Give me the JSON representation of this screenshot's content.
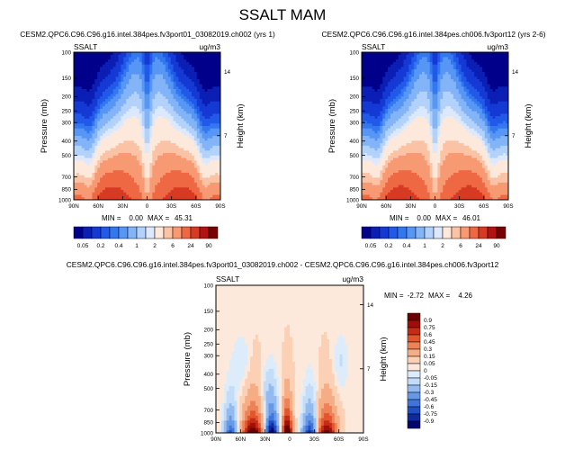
{
  "figure": {
    "title": "SSALT MAM"
  },
  "chart_data": [
    {
      "type": "heatmap",
      "panel": "top-left",
      "title": "CESM2.QPC6.C96.C96.g16.intel.384pes.fv3port01_03082019.ch002 (yrs 1)",
      "variable": "SSALT",
      "units": "ug/m3",
      "ylabel": "Pressure (mb)",
      "y2label": "Height (km)",
      "x_ticks": [
        "90N",
        "60N",
        "30N",
        "0",
        "30S",
        "60S",
        "90S"
      ],
      "y_ticks": [
        "100",
        "150",
        "200",
        "250",
        "300",
        "400",
        "500",
        "700",
        "850",
        "1000"
      ],
      "y2_ticks": [
        "14",
        "7"
      ],
      "min_label": "MIN =",
      "min_value": "0.00",
      "max_label": "MAX =",
      "max_value": "45.31",
      "x": [
        90,
        60,
        30,
        0,
        -30,
        -60,
        -90
      ],
      "ylim": [
        100,
        1000
      ],
      "y_scale": "log",
      "colorbar": {
        "orientation": "horizontal",
        "levels": [
          0.05,
          0.1,
          0.2,
          0.3,
          0.4,
          0.6,
          1,
          1.5,
          2,
          4,
          6,
          12,
          24,
          48,
          90
        ],
        "labels": [
          "0.05",
          "0.2",
          "0.4",
          "1",
          "2",
          "6",
          "24",
          "90"
        ],
        "colors": [
          "#00008b",
          "#0b1fb5",
          "#1539d4",
          "#2159e8",
          "#3378f0",
          "#5796f5",
          "#82b4f7",
          "#b2d2fb",
          "#dce9fd",
          "#fde9dc",
          "#fbc3a5",
          "#f79a73",
          "#ee6844",
          "#d63a22",
          "#b11410",
          "#7a0000"
        ]
      },
      "visible_max": 45.31
    },
    {
      "type": "heatmap",
      "panel": "top-right",
      "title": "CESM2.QPC6.C96.C96.g16.intel.384pes.ch006.fv3port12 (yrs 2-6)",
      "variable": "SSALT",
      "units": "ug/m3",
      "ylabel": "Pressure (mb)",
      "y2label": "Height (km)",
      "x_ticks": [
        "90N",
        "60N",
        "30N",
        "0",
        "30S",
        "60S",
        "90S"
      ],
      "y_ticks": [
        "100",
        "150",
        "200",
        "250",
        "300",
        "400",
        "500",
        "700",
        "850",
        "1000"
      ],
      "y2_ticks": [
        "14",
        "7"
      ],
      "min_label": "MIN =",
      "min_value": "0.00",
      "max_label": "MAX =",
      "max_value": "46.01",
      "x": [
        90,
        60,
        30,
        0,
        -30,
        -60,
        -90
      ],
      "ylim": [
        100,
        1000
      ],
      "y_scale": "log",
      "colorbar": {
        "orientation": "horizontal",
        "levels": [
          0.05,
          0.1,
          0.2,
          0.3,
          0.4,
          0.6,
          1,
          1.5,
          2,
          4,
          6,
          12,
          24,
          48,
          90
        ],
        "labels": [
          "0.05",
          "0.2",
          "0.4",
          "1",
          "2",
          "6",
          "24",
          "90"
        ],
        "colors": [
          "#00008b",
          "#0b1fb5",
          "#1539d4",
          "#2159e8",
          "#3378f0",
          "#5796f5",
          "#82b4f7",
          "#b2d2fb",
          "#dce9fd",
          "#fde9dc",
          "#fbc3a5",
          "#f79a73",
          "#ee6844",
          "#d63a22",
          "#b11410",
          "#7a0000"
        ]
      },
      "visible_max": 46.01
    },
    {
      "type": "heatmap",
      "panel": "bottom-difference",
      "title": "CESM2.QPC6.C96.C96.g16.intel.384pes.fv3port01_03082019.ch002 - CESM2.QPC6.C96.C96.g16.intel.384pes.ch006.fv3port12",
      "variable": "SSALT",
      "units": "ug/m3",
      "ylabel": "Pressure (mb)",
      "y2label": "Height (km)",
      "x_ticks": [
        "90N",
        "60N",
        "30N",
        "0",
        "30S",
        "60S",
        "90S"
      ],
      "y_ticks": [
        "100",
        "150",
        "200",
        "250",
        "300",
        "400",
        "500",
        "700",
        "850",
        "1000"
      ],
      "y2_ticks": [
        "14",
        "7"
      ],
      "min_label": "MIN =",
      "min_value": "-2.72",
      "max_label": "MAX =",
      "max_value": "4.26",
      "x": [
        90,
        60,
        30,
        0,
        -30,
        -60,
        -90
      ],
      "ylim": [
        100,
        1000
      ],
      "y_scale": "log",
      "colorbar": {
        "orientation": "vertical",
        "levels": [
          -0.9,
          -0.75,
          -0.6,
          -0.45,
          -0.3,
          -0.15,
          -0.05,
          0,
          0.05,
          0.15,
          0.3,
          0.45,
          0.6,
          0.75,
          0.9
        ],
        "labels": [
          "0.9",
          "0.75",
          "0.6",
          "0.45",
          "0.3",
          "0.15",
          "0.05",
          "0",
          "-0.05",
          "-0.15",
          "-0.3",
          "-0.45",
          "-0.6",
          "-0.75",
          "-0.9"
        ],
        "colors": [
          "#05056f",
          "#0e2a9e",
          "#1f4fc4",
          "#3f74db",
          "#6798e6",
          "#93bbf0",
          "#c3dcf8",
          "#dcecfb",
          "#fde9dc",
          "#fbd0b4",
          "#f6ad85",
          "#ee8257",
          "#e2562e",
          "#c52c15",
          "#9e0f08",
          "#6b0000"
        ]
      }
    }
  ]
}
